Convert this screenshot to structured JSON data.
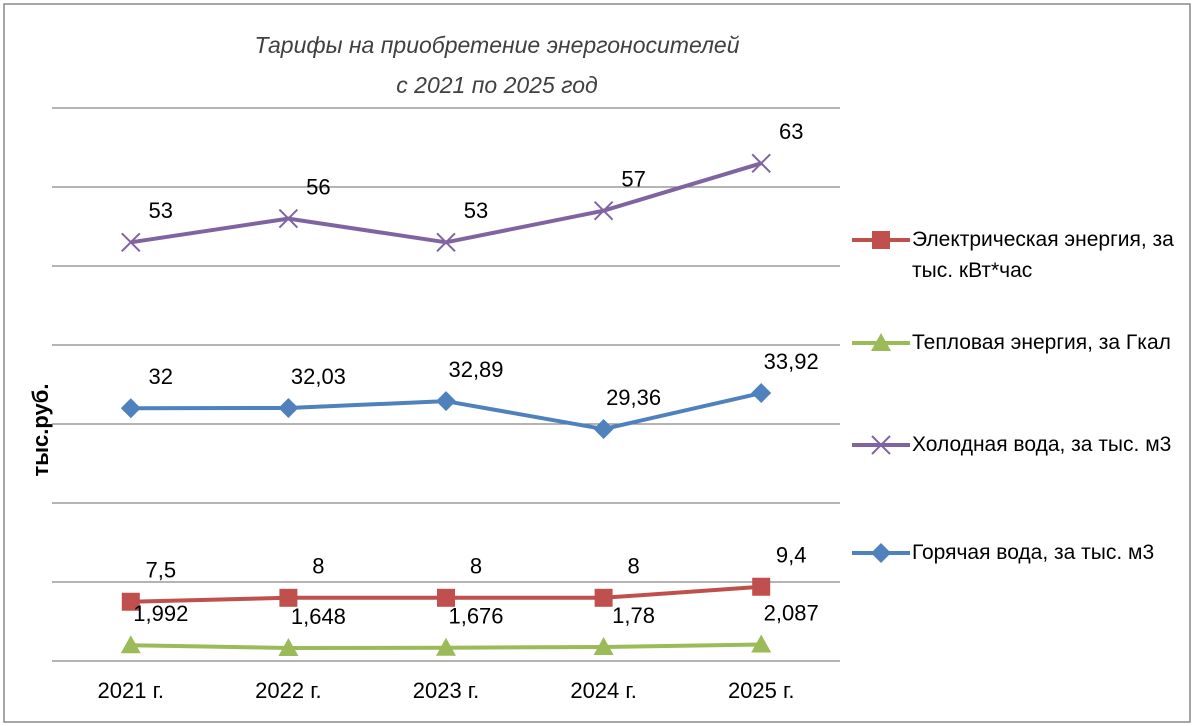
{
  "chart_data": {
    "type": "line",
    "title": "Тарифы на приобретение энергоносителей",
    "subtitle": "с 2021 по 2025 год",
    "ylabel": "тыс.руб.",
    "categories": [
      "2021 г.",
      "2022 г.",
      "2023 г.",
      "2024 г.",
      "2025 г."
    ],
    "ylim": [
      0,
      70
    ],
    "yticks": [
      0,
      10,
      20,
      30,
      40,
      50,
      60,
      70
    ],
    "grid": true,
    "legend": "right",
    "series": [
      {
        "name": "Электрическая энергия, за тыс. кВт*час",
        "color": "#c0504d",
        "marker": "square",
        "values": [
          7.5,
          8,
          8,
          8,
          9.4
        ],
        "value_labels": [
          "7,5",
          "8",
          "8",
          "8",
          "9,4"
        ]
      },
      {
        "name": "Тепловая энергия, за Гкал",
        "color": "#9bbb59",
        "marker": "triangle",
        "values": [
          1.992,
          1.648,
          1.676,
          1.78,
          2.087
        ],
        "value_labels": [
          "1,992",
          "1,648",
          "1,676",
          "1,78",
          "2,087"
        ]
      },
      {
        "name": "Холодная вода, за тыс. м3",
        "color": "#8064a2",
        "marker": "x",
        "values": [
          53,
          56,
          53,
          57,
          63
        ],
        "value_labels": [
          "53",
          "56",
          "53",
          "57",
          "63"
        ]
      },
      {
        "name": "Горячая вода, за тыс. м3",
        "color": "#4f81bd",
        "marker": "diamond",
        "values": [
          32,
          32.03,
          32.89,
          29.36,
          33.92
        ],
        "value_labels": [
          "32",
          "32,03",
          "32,89",
          "29,36",
          "33,92"
        ]
      }
    ]
  }
}
